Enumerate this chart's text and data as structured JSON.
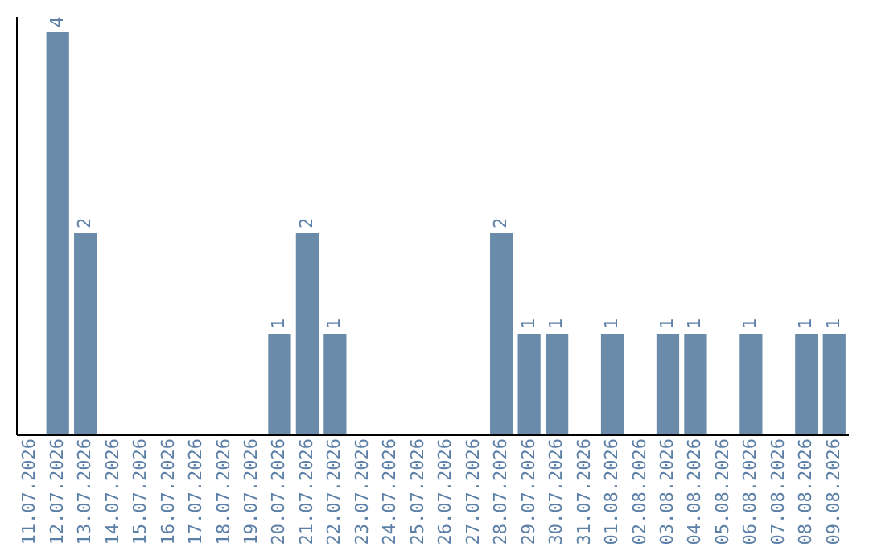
{
  "chart_data": {
    "type": "bar",
    "categories": [
      "11.07.2026",
      "12.07.2026",
      "13.07.2026",
      "14.07.2026",
      "15.07.2026",
      "16.07.2026",
      "17.07.2026",
      "18.07.2026",
      "19.07.2026",
      "20.07.2026",
      "21.07.2026",
      "22.07.2026",
      "23.07.2026",
      "24.07.2026",
      "25.07.2026",
      "26.07.2026",
      "27.07.2026",
      "28.07.2026",
      "29.07.2026",
      "30.07.2026",
      "31.07.2026",
      "01.08.2026",
      "02.08.2026",
      "03.08.2026",
      "04.08.2026",
      "05.08.2026",
      "06.08.2026",
      "07.08.2026",
      "08.08.2026",
      "09.08.2026"
    ],
    "values": [
      0,
      4,
      2,
      0,
      0,
      0,
      0,
      0,
      0,
      1,
      2,
      1,
      0,
      0,
      0,
      0,
      0,
      2,
      1,
      1,
      0,
      1,
      0,
      1,
      1,
      0,
      1,
      0,
      1,
      1
    ],
    "value_labels": [
      null,
      "4",
      "2",
      null,
      null,
      null,
      null,
      null,
      null,
      "1",
      "2",
      "1",
      null,
      null,
      null,
      null,
      null,
      "2",
      "1",
      "1",
      null,
      "1",
      null,
      "1",
      "1",
      null,
      "1",
      null,
      "1",
      "1"
    ],
    "color": "#6a8caa"
  }
}
